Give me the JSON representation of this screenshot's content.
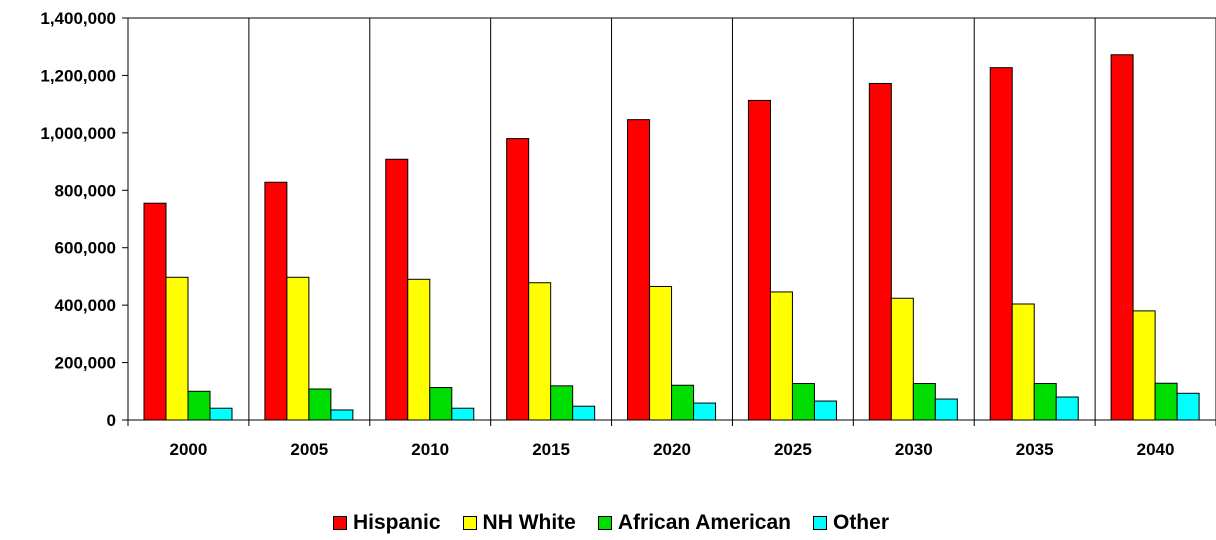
{
  "chart_data": {
    "type": "bar",
    "categories": [
      "2000",
      "2005",
      "2010",
      "2015",
      "2020",
      "2025",
      "2030",
      "2035",
      "2040"
    ],
    "series": [
      {
        "name": "Hispanic",
        "color": "#ff0000",
        "values": [
          755000,
          828000,
          908000,
          980000,
          1046000,
          1113000,
          1172000,
          1227000,
          1272000
        ]
      },
      {
        "name": "NH White",
        "color": "#ffff00",
        "values": [
          497000,
          497000,
          490000,
          478000,
          465000,
          446000,
          424000,
          404000,
          380000
        ]
      },
      {
        "name": "African American",
        "color": "#00dd00",
        "values": [
          100000,
          108000,
          113000,
          119000,
          121000,
          127000,
          127000,
          127000,
          128000
        ]
      },
      {
        "name": "Other",
        "color": "#00ffff",
        "values": [
          41000,
          35000,
          41000,
          48000,
          59000,
          66000,
          73000,
          80000,
          93000
        ]
      }
    ],
    "y_ticks": [
      "0",
      "200,000",
      "400,000",
      "600,000",
      "800,000",
      "1,000,000",
      "1,200,000",
      "1,400,000"
    ],
    "ylim": [
      0,
      1400000
    ],
    "grid": "vertical category separators",
    "legend_position": "bottom",
    "title": "",
    "xlabel": "",
    "ylabel": ""
  }
}
